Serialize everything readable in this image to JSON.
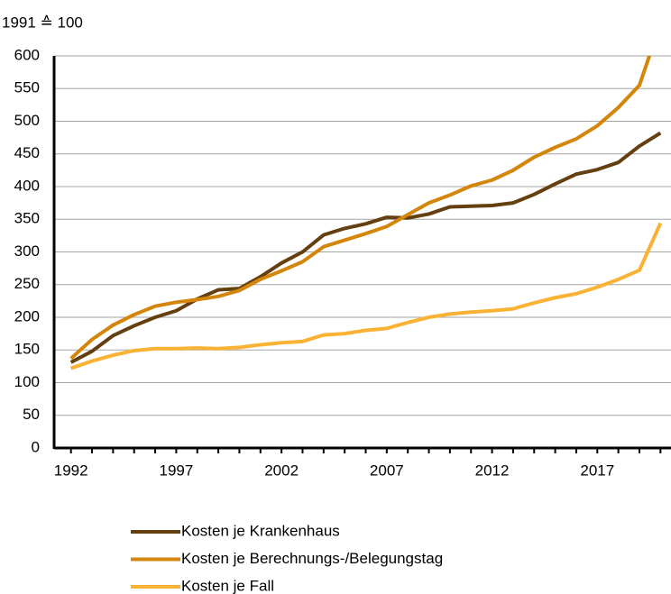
{
  "chart_data": {
    "type": "line",
    "ylabel": "1991 ≙ 100",
    "x": [
      1992,
      1993,
      1994,
      1995,
      1996,
      1997,
      1998,
      1999,
      2000,
      2001,
      2002,
      2003,
      2004,
      2005,
      2006,
      2007,
      2008,
      2009,
      2010,
      2011,
      2012,
      2013,
      2014,
      2015,
      2016,
      2017,
      2018,
      2019,
      2020
    ],
    "series": [
      {
        "name": "Kosten je Krankenhaus",
        "color": "#643f10",
        "values": [
          131,
          148,
          172,
          187,
          200,
          210,
          228,
          242,
          244,
          262,
          283,
          300,
          326,
          336,
          343,
          353,
          352,
          358,
          369,
          370,
          371,
          375,
          388,
          404,
          419,
          426,
          437,
          462,
          482
        ]
      },
      {
        "name": "Kosten je Berechnungs-/Belegungstag",
        "color": "#d4860b",
        "values": [
          137,
          166,
          188,
          204,
          217,
          223,
          227,
          232,
          241,
          258,
          271,
          285,
          308,
          318,
          328,
          339,
          357,
          375,
          387,
          401,
          410,
          425,
          445,
          460,
          473,
          493,
          521,
          555,
          650
        ]
      },
      {
        "name": "Kosten je Fall",
        "color": "#f9b233",
        "values": [
          122,
          133,
          142,
          149,
          152,
          152,
          153,
          152,
          154,
          158,
          161,
          163,
          173,
          175,
          180,
          183,
          192,
          200,
          205,
          208,
          210,
          213,
          222,
          230,
          236,
          246,
          258,
          272,
          344
        ]
      }
    ],
    "xlim": [
      1991.2,
      2020.5
    ],
    "xticks": [
      1992,
      1997,
      2002,
      2007,
      2012,
      2017
    ],
    "ylim": [
      0,
      600
    ],
    "yticks": [
      0,
      50,
      100,
      150,
      200,
      250,
      300,
      350,
      400,
      450,
      500,
      550,
      600
    ],
    "grid": true,
    "legend": "bottom"
  }
}
